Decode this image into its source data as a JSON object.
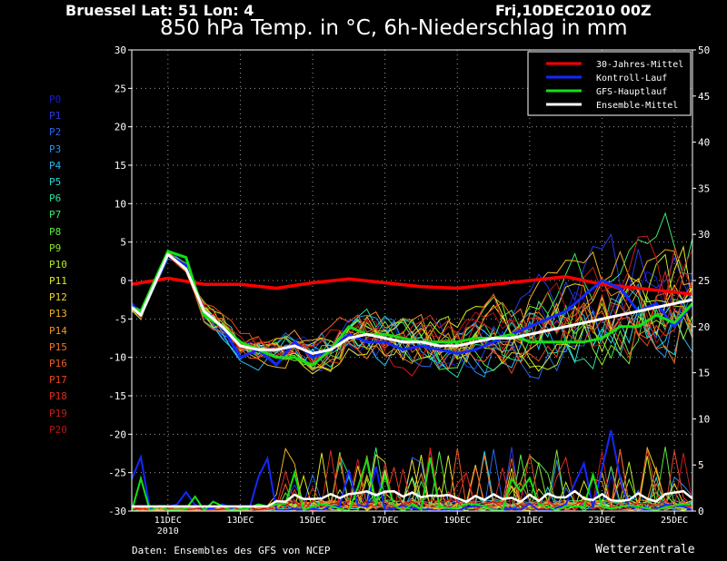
{
  "header": {
    "location": "Bruessel  Lat: 51 Lon: 4",
    "date": "Fri,10DEC2010 00Z",
    "title": "850 hPa Temp. in °C, 6h-Niederschlag in mm"
  },
  "footer": {
    "source": "Daten: Ensembles des GFS von NCEP",
    "brand": "Wetterzentrale"
  },
  "members": [
    {
      "label": "P0",
      "color": "#1a1ad0"
    },
    {
      "label": "P1",
      "color": "#2a3ae8"
    },
    {
      "label": "P2",
      "color": "#2a66f0"
    },
    {
      "label": "P3",
      "color": "#2a90f0"
    },
    {
      "label": "P4",
      "color": "#28b8f0"
    },
    {
      "label": "P5",
      "color": "#28d8d8"
    },
    {
      "label": "P6",
      "color": "#28e0a0"
    },
    {
      "label": "P7",
      "color": "#3ce86c"
    },
    {
      "label": "P8",
      "color": "#5ae840"
    },
    {
      "label": "P9",
      "color": "#86e828"
    },
    {
      "label": "P10",
      "color": "#b4ec24"
    },
    {
      "label": "P11",
      "color": "#e0ec24"
    },
    {
      "label": "P12",
      "color": "#f0d424"
    },
    {
      "label": "P13",
      "color": "#f0b424"
    },
    {
      "label": "P14",
      "color": "#f09424"
    },
    {
      "label": "P15",
      "color": "#f07824"
    },
    {
      "label": "P16",
      "color": "#f05c24"
    },
    {
      "label": "P17",
      "color": "#ec4424"
    },
    {
      "label": "P18",
      "color": "#e02c24"
    },
    {
      "label": "P19",
      "color": "#cc1c1c"
    },
    {
      "label": "P20",
      "color": "#b41414"
    }
  ],
  "chart_data": {
    "type": "line",
    "xlim": [
      0,
      15.5
    ],
    "x_ticks": [
      {
        "x": 1,
        "label": "11DEC",
        "sublabel": "2010"
      },
      {
        "x": 3,
        "label": "13DEC",
        "sublabel": ""
      },
      {
        "x": 5,
        "label": "15DEC",
        "sublabel": ""
      },
      {
        "x": 7,
        "label": "17DEC",
        "sublabel": ""
      },
      {
        "x": 9,
        "label": "19DEC",
        "sublabel": ""
      },
      {
        "x": 11,
        "label": "21DEC",
        "sublabel": ""
      },
      {
        "x": 13,
        "label": "23DEC",
        "sublabel": ""
      },
      {
        "x": 15,
        "label": "25DEC",
        "sublabel": ""
      }
    ],
    "y_left": {
      "range": [
        -30,
        30
      ],
      "ticks": [
        30,
        25,
        20,
        15,
        10,
        5,
        0,
        -5,
        -10,
        -15,
        -20,
        -25,
        -30
      ]
    },
    "y_right": {
      "range": [
        0,
        50
      ],
      "ticks": [
        50,
        45,
        40,
        35,
        30,
        25,
        20,
        15,
        10,
        5,
        0
      ]
    },
    "grid": true,
    "legend_position": "top-right",
    "series": [
      {
        "name": "30-Jahres-Mittel",
        "color": "#ff0000",
        "width": 3.5,
        "points": [
          [
            0,
            -0.5
          ],
          [
            1,
            0.3
          ],
          [
            2,
            -0.5
          ],
          [
            3,
            -0.5
          ],
          [
            4,
            -1
          ],
          [
            5,
            -0.3
          ],
          [
            6,
            0.2
          ],
          [
            7,
            -0.3
          ],
          [
            8,
            -0.8
          ],
          [
            9,
            -1
          ],
          [
            10,
            -0.5
          ],
          [
            11,
            0
          ],
          [
            12,
            0.5
          ],
          [
            13,
            -0.5
          ],
          [
            14,
            -1
          ],
          [
            15,
            -1.5
          ],
          [
            15.5,
            -1.8
          ]
        ]
      },
      {
        "name": "Kontroll-Lauf",
        "color": "#1428ff",
        "width": 3,
        "points": [
          [
            0,
            -3
          ],
          [
            0.25,
            -4.5
          ],
          [
            1,
            3.3
          ],
          [
            1.5,
            2
          ],
          [
            2,
            -4
          ],
          [
            2.5,
            -6
          ],
          [
            3,
            -10
          ],
          [
            3.5,
            -9
          ],
          [
            4,
            -11
          ],
          [
            4.5,
            -8
          ],
          [
            5,
            -10
          ],
          [
            5.5,
            -9
          ],
          [
            6,
            -7
          ],
          [
            6.5,
            -8
          ],
          [
            7,
            -8
          ],
          [
            7.5,
            -9
          ],
          [
            8,
            -8.5
          ],
          [
            8.5,
            -9
          ],
          [
            9,
            -9.5
          ],
          [
            9.5,
            -9
          ],
          [
            10,
            -8
          ],
          [
            10.5,
            -7
          ],
          [
            11,
            -6
          ],
          [
            11.5,
            -5
          ],
          [
            12,
            -4
          ],
          [
            12.5,
            -2
          ],
          [
            13,
            0
          ],
          [
            13.5,
            -1
          ],
          [
            14,
            -4
          ],
          [
            14.5,
            -3
          ],
          [
            15,
            -6
          ],
          [
            15.5,
            -3
          ]
        ]
      },
      {
        "name": "GFS-Hauptlauf",
        "color": "#14e014",
        "width": 3,
        "points": [
          [
            0,
            -3.5
          ],
          [
            0.25,
            -4
          ],
          [
            1,
            3.8
          ],
          [
            1.5,
            3
          ],
          [
            2,
            -4.5
          ],
          [
            2.5,
            -6
          ],
          [
            3,
            -8
          ],
          [
            3.5,
            -9
          ],
          [
            4,
            -10
          ],
          [
            4.5,
            -10
          ],
          [
            5,
            -11
          ],
          [
            5.5,
            -9
          ],
          [
            6,
            -6
          ],
          [
            6.5,
            -7
          ],
          [
            7,
            -7
          ],
          [
            7.5,
            -7.5
          ],
          [
            8,
            -8
          ],
          [
            8.5,
            -8
          ],
          [
            9,
            -8
          ],
          [
            9.5,
            -7.5
          ],
          [
            10,
            -7.5
          ],
          [
            10.5,
            -7
          ],
          [
            11,
            -8
          ],
          [
            11.5,
            -8
          ],
          [
            12,
            -8
          ],
          [
            12.5,
            -8
          ],
          [
            13,
            -7.5
          ],
          [
            13.5,
            -6
          ],
          [
            14,
            -6
          ],
          [
            14.5,
            -4.5
          ],
          [
            15,
            -5.5
          ],
          [
            15.5,
            -3
          ]
        ]
      },
      {
        "name": "Ensemble-Mittel",
        "color": "#ffffff",
        "width": 3,
        "points": [
          [
            0,
            -3.5
          ],
          [
            0.25,
            -4.5
          ],
          [
            1,
            3.4
          ],
          [
            1.5,
            1.5
          ],
          [
            2,
            -4
          ],
          [
            2.5,
            -6
          ],
          [
            3,
            -8.5
          ],
          [
            3.5,
            -9
          ],
          [
            4,
            -9
          ],
          [
            4.5,
            -8.5
          ],
          [
            5,
            -9.5
          ],
          [
            5.5,
            -9
          ],
          [
            6,
            -7.5
          ],
          [
            6.5,
            -7
          ],
          [
            7,
            -7.5
          ],
          [
            7.5,
            -8
          ],
          [
            8,
            -8
          ],
          [
            8.5,
            -8.5
          ],
          [
            9,
            -8.5
          ],
          [
            9.5,
            -8
          ],
          [
            10,
            -7.5
          ],
          [
            10.5,
            -7.5
          ],
          [
            11,
            -7
          ],
          [
            11.5,
            -6.5
          ],
          [
            12,
            -6
          ],
          [
            12.5,
            -5.5
          ],
          [
            13,
            -5
          ],
          [
            13.5,
            -4.5
          ],
          [
            14,
            -4
          ],
          [
            14.5,
            -3.5
          ],
          [
            15,
            -3
          ],
          [
            15.5,
            -2.5
          ]
        ]
      }
    ]
  }
}
